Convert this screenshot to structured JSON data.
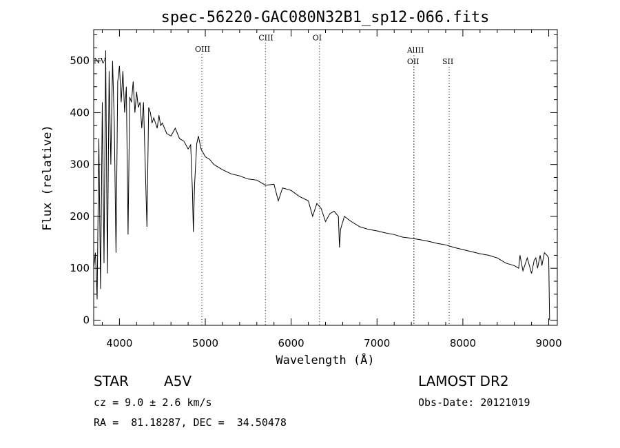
{
  "chart_data": {
    "type": "line",
    "title": "spec-56220-GAC080N32B1_sp12-066.fits",
    "xlabel": "Wavelength (Å)",
    "ylabel": "Flux (relative)",
    "xlim": [
      3700,
      9100
    ],
    "ylim": [
      -10,
      560
    ],
    "xticks": [
      4000,
      5000,
      6000,
      7000,
      8000,
      9000
    ],
    "yticks": [
      0,
      100,
      200,
      300,
      400,
      500
    ],
    "x_tick_labels": [
      "4000",
      "5000",
      "6000",
      "7000",
      "8000",
      "9000"
    ],
    "y_tick_labels": [
      "0",
      "100",
      "200",
      "300",
      "400",
      "500"
    ],
    "grid": false,
    "line_color": "#000000",
    "marker_color": "#000000",
    "line_markers": [
      {
        "name": "NV",
        "wavelength": 3727,
        "label_flux": 500
      },
      {
        "name": "OIII",
        "wavelength": 4960,
        "label_flux": 523
      },
      {
        "name": "CIII",
        "wavelength": 5700,
        "label_flux": 545
      },
      {
        "name": "OI",
        "wavelength": 6330,
        "label_flux": 545
      },
      {
        "name": "AlIII",
        "wavelength": 7430,
        "label_flux": 521
      },
      {
        "name": "OII",
        "wavelength": 7430,
        "label_flux": 499
      },
      {
        "name": "SII",
        "wavelength": 7840,
        "label_flux": 499
      }
    ],
    "series": [
      {
        "name": "spectrum",
        "x": [
          3700,
          3720,
          3740,
          3760,
          3780,
          3800,
          3820,
          3840,
          3860,
          3880,
          3900,
          3920,
          3940,
          3960,
          3980,
          4000,
          4020,
          4040,
          4060,
          4080,
          4100,
          4120,
          4140,
          4160,
          4180,
          4200,
          4220,
          4240,
          4260,
          4280,
          4300,
          4320,
          4340,
          4360,
          4380,
          4400,
          4420,
          4440,
          4460,
          4480,
          4500,
          4550,
          4600,
          4650,
          4700,
          4750,
          4800,
          4830,
          4850,
          4861,
          4875,
          4900,
          4920,
          4950,
          5000,
          5050,
          5100,
          5200,
          5300,
          5400,
          5500,
          5600,
          5700,
          5800,
          5850,
          5900,
          6000,
          6100,
          6200,
          6250,
          6300,
          6350,
          6400,
          6450,
          6500,
          6550,
          6563,
          6575,
          6620,
          6700,
          6800,
          6900,
          7000,
          7100,
          7200,
          7300,
          7400,
          7500,
          7600,
          7700,
          7800,
          7900,
          8000,
          8100,
          8200,
          8300,
          8400,
          8500,
          8600,
          8650,
          8665,
          8700,
          8750,
          8800,
          8830,
          8850,
          8870,
          8900,
          8920,
          8950,
          8980,
          9000,
          9010
        ],
        "y": [
          100,
          130,
          40,
          350,
          60,
          420,
          110,
          520,
          90,
          480,
          300,
          500,
          380,
          130,
          460,
          490,
          420,
          480,
          400,
          450,
          165,
          430,
          420,
          460,
          400,
          440,
          410,
          420,
          370,
          420,
          300,
          180,
          410,
          400,
          380,
          390,
          380,
          370,
          395,
          375,
          380,
          360,
          355,
          370,
          350,
          345,
          330,
          338,
          250,
          170,
          260,
          340,
          355,
          330,
          315,
          310,
          300,
          290,
          282,
          278,
          272,
          270,
          260,
          262,
          230,
          255,
          250,
          238,
          230,
          200,
          225,
          215,
          190,
          205,
          210,
          200,
          140,
          175,
          200,
          190,
          180,
          175,
          172,
          168,
          165,
          160,
          158,
          155,
          152,
          148,
          145,
          140,
          136,
          132,
          128,
          125,
          120,
          110,
          105,
          100,
          125,
          95,
          120,
          90,
          115,
          120,
          100,
          125,
          105,
          130,
          125,
          120,
          0
        ]
      }
    ]
  },
  "info": {
    "object_type": "STAR",
    "subclass": "A5V",
    "survey": "LAMOST DR2",
    "cz_label": "cz = ",
    "cz_value": "9.0",
    "cz_pm": "±",
    "cz_error": "2.6",
    "cz_unit": "km/s",
    "obs_date_label": "Obs-Date:",
    "obs_date": "20121019",
    "ra_label": "RA =",
    "ra_value": "81.18287",
    "dec_label": "DEC =",
    "dec_value": "34.50478"
  }
}
